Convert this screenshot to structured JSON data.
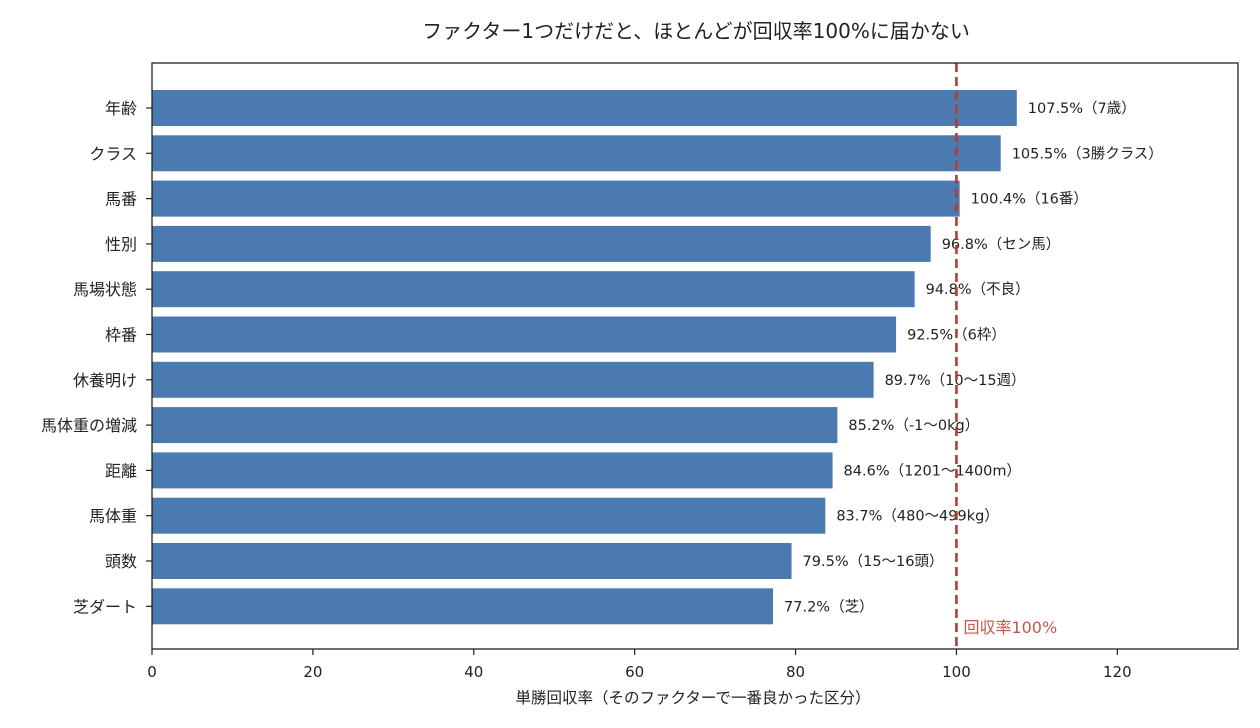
{
  "chart_data": {
    "type": "bar",
    "orientation": "horizontal",
    "title": "ファクター1つだけだと、ほとんどが回収率100%に届かない",
    "xlabel": "単勝回収率（そのファクターで一番良かった区分）",
    "ylabel": "",
    "xlim": [
      0,
      135
    ],
    "xticks": [
      0,
      20,
      40,
      60,
      80,
      100,
      120
    ],
    "grid": false,
    "categories": [
      "年齢",
      "クラス",
      "馬番",
      "性別",
      "馬場状態",
      "枠番",
      "休養明け",
      "馬体重の増減",
      "距離",
      "馬体重",
      "頭数",
      "芝ダート"
    ],
    "values": [
      107.5,
      105.5,
      100.4,
      96.8,
      94.8,
      92.5,
      89.7,
      85.2,
      84.6,
      83.7,
      79.5,
      77.2
    ],
    "labels": [
      "107.5%（7歳）",
      "105.5%（3勝クラス）",
      "100.4%（16番）",
      "96.8%（セン馬）",
      "94.8%（不良）",
      "92.5%（6枠）",
      "89.7%（10〜15週）",
      "85.2%（-1〜0kg）",
      "84.6%（1201〜1400m）",
      "83.7%（480〜499kg）",
      "79.5%（15〜16頭）",
      "77.2%（芝）"
    ],
    "reference_line": {
      "value": 100,
      "label": "回収率100%",
      "style": "dashed"
    },
    "colors": {
      "bar": "#4a7aaf",
      "reference": "#b83a33",
      "reference_text": "#c4584f",
      "axis": "#222222"
    }
  }
}
